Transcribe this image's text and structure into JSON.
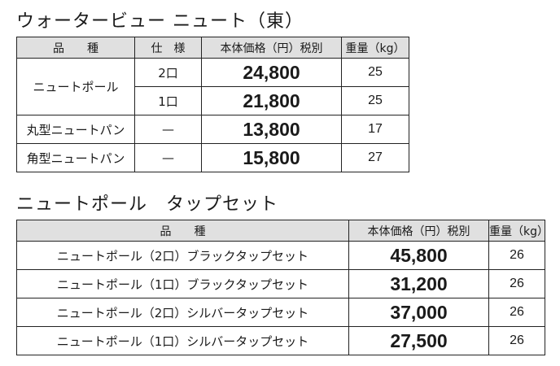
{
  "section1": {
    "title": "ウォータービュー ニュート（東）",
    "headers": [
      "品　　種",
      "仕　様",
      "本体価格（円）税別",
      "重量（kg）"
    ],
    "rows": [
      {
        "name": "ニュートポール",
        "spec": "2口",
        "price": "24,800",
        "weight": "25"
      },
      {
        "name": "",
        "spec": "1口",
        "price": "21,800",
        "weight": "25"
      },
      {
        "name": "丸型ニュートパン",
        "spec": "—",
        "price": "13,800",
        "weight": "17"
      },
      {
        "name": "角型ニュートパン",
        "spec": "—",
        "price": "15,800",
        "weight": "27"
      }
    ]
  },
  "section2": {
    "title": "ニュートポール　タップセット",
    "headers": [
      "品　　種",
      "本体価格（円）税別",
      "重量（kg）"
    ],
    "rows": [
      {
        "name": "ニュートポール（2口）ブラックタップセット",
        "price": "45,800",
        "weight": "26"
      },
      {
        "name": "ニュートポール（1口）ブラックタップセット",
        "price": "31,200",
        "weight": "26"
      },
      {
        "name": "ニュートポール（2口）シルバータップセット",
        "price": "37,000",
        "weight": "26"
      },
      {
        "name": "ニュートポール（1口）シルバータップセット",
        "price": "27,500",
        "weight": "26"
      }
    ]
  }
}
